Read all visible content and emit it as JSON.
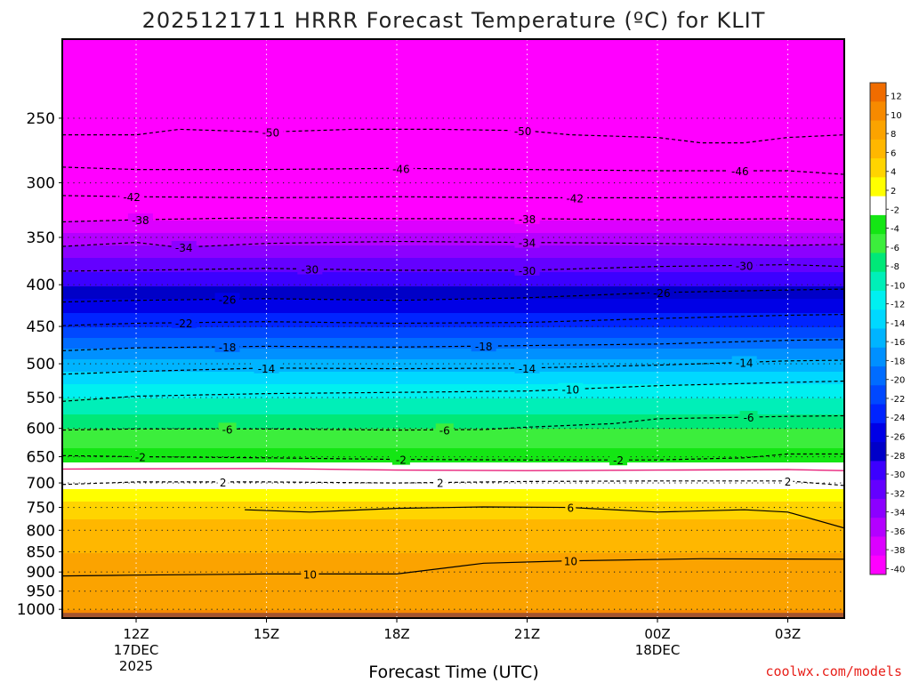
{
  "chart_data": {
    "type": "contour",
    "title": "2025121711 HRRR Forecast Temperature (ºC) for KLIT",
    "xlabel": "Forecast Time (UTC)",
    "ylabel": "",
    "credit": "coolwx.com/models",
    "x_range_hours": [
      -1.7,
      16.3
    ],
    "ylim": [
      1025,
      200
    ],
    "x_ticks": [
      {
        "hour": 0,
        "line1": "12Z",
        "line2": "17DEC",
        "line3": "2025"
      },
      {
        "hour": 3,
        "line1": "15Z",
        "line2": "",
        "line3": ""
      },
      {
        "hour": 6,
        "line1": "18Z",
        "line2": "",
        "line3": ""
      },
      {
        "hour": 9,
        "line1": "21Z",
        "line2": "",
        "line3": ""
      },
      {
        "hour": 12,
        "line1": "00Z",
        "line2": "18DEC",
        "line3": ""
      },
      {
        "hour": 15,
        "line1": "03Z",
        "line2": "",
        "line3": ""
      }
    ],
    "y_ticks": [
      250,
      300,
      350,
      400,
      450,
      500,
      550,
      600,
      650,
      700,
      750,
      800,
      850,
      900,
      950,
      1000
    ],
    "colorbar": {
      "levels": [
        "12",
        "10",
        "8",
        "6",
        "4",
        "2",
        "-2",
        "-4",
        "-6",
        "-8",
        "-10",
        "-12",
        "-14",
        "-16",
        "-18",
        "-20",
        "-22",
        "-24",
        "-26",
        "-28",
        "-30",
        "-32",
        "-34",
        "-36",
        "-38",
        "-40"
      ],
      "colors": [
        "#f06c00",
        "#f78a00",
        "#fba300",
        "#ffb700",
        "#ffd400",
        "#ffff00",
        "#ffffff",
        "#14e614",
        "#3cee3c",
        "#00e878",
        "#00efb8",
        "#00f0f0",
        "#00d8ff",
        "#00b4ff",
        "#0090ff",
        "#006cff",
        "#0048ff",
        "#0024ff",
        "#0000e6",
        "#0000c8",
        "#3c00ff",
        "#6400ff",
        "#8c00ff",
        "#b400ff",
        "#dc00ff",
        "#ff00ff"
      ]
    },
    "temperature_profile": [
      {
        "p": 1000,
        "t": 10
      },
      {
        "p": 950,
        "t": 9
      },
      {
        "p": 900,
        "t": 9
      },
      {
        "p": 850,
        "t": 8
      },
      {
        "p": 800,
        "t": 7
      },
      {
        "p": 750,
        "t": 5
      },
      {
        "p": 700,
        "t": 1
      },
      {
        "p": 680,
        "t": 0
      },
      {
        "p": 650,
        "t": -3
      },
      {
        "p": 600,
        "t": -6
      },
      {
        "p": 550,
        "t": -10
      },
      {
        "p": 500,
        "t": -15
      },
      {
        "p": 450,
        "t": -22
      },
      {
        "p": 400,
        "t": -28
      },
      {
        "p": 350,
        "t": -35
      },
      {
        "p": 300,
        "t": -44
      },
      {
        "p": 250,
        "t": -50
      }
    ],
    "contours": [
      {
        "label": "-50",
        "points": [
          [
            -1.7,
            262
          ],
          [
            0,
            262
          ],
          [
            1,
            258
          ],
          [
            3,
            260
          ],
          [
            5,
            258
          ],
          [
            7,
            258
          ],
          [
            9,
            259
          ],
          [
            10,
            262
          ],
          [
            12,
            264
          ],
          [
            13,
            268
          ],
          [
            14,
            268
          ],
          [
            15,
            264
          ],
          [
            16.3,
            262
          ]
        ],
        "label_hours": [
          3.1,
          8.9
        ]
      },
      {
        "label": "-46",
        "points": [
          [
            -1.7,
            287
          ],
          [
            0,
            289
          ],
          [
            3,
            289
          ],
          [
            6,
            288
          ],
          [
            9,
            289
          ],
          [
            12,
            290
          ],
          [
            15,
            290
          ],
          [
            16.3,
            293
          ]
        ],
        "label_hours": [
          6.1,
          13.9
        ]
      },
      {
        "label": "-42",
        "points": [
          [
            -1.7,
            311
          ],
          [
            0,
            312
          ],
          [
            3,
            313
          ],
          [
            6,
            312
          ],
          [
            9,
            313
          ],
          [
            12,
            313
          ],
          [
            15,
            312
          ],
          [
            16.3,
            313
          ]
        ],
        "label_hours": [
          -0.1,
          10.1
        ]
      },
      {
        "label": "-38",
        "points": [
          [
            -1.7,
            335
          ],
          [
            0,
            333
          ],
          [
            3,
            331
          ],
          [
            6,
            332
          ],
          [
            9,
            332
          ],
          [
            12,
            333
          ],
          [
            15,
            332
          ],
          [
            16.3,
            333
          ]
        ],
        "label_hours": [
          0.1,
          9.0
        ]
      },
      {
        "label": "-34",
        "points": [
          [
            -1.7,
            359
          ],
          [
            0,
            355
          ],
          [
            1,
            360
          ],
          [
            3,
            356
          ],
          [
            6,
            354
          ],
          [
            9,
            355
          ],
          [
            12,
            356
          ],
          [
            15,
            358
          ],
          [
            16.3,
            357
          ]
        ],
        "label_hours": [
          1.1,
          9.0
        ]
      },
      {
        "label": "-30",
        "points": [
          [
            -1.7,
            385
          ],
          [
            0,
            384
          ],
          [
            3,
            382
          ],
          [
            6,
            384
          ],
          [
            9,
            384
          ],
          [
            12,
            380
          ],
          [
            15,
            378
          ],
          [
            16.3,
            380
          ]
        ],
        "label_hours": [
          4.0,
          9.0,
          14.0
        ]
      },
      {
        "label": "-26",
        "points": [
          [
            -1.7,
            420
          ],
          [
            0,
            418
          ],
          [
            3,
            416
          ],
          [
            6,
            418
          ],
          [
            9,
            415
          ],
          [
            12,
            409
          ],
          [
            15,
            406
          ],
          [
            16.3,
            405
          ]
        ],
        "label_hours": [
          2.1,
          12.1
        ]
      },
      {
        "label": "-22",
        "points": [
          [
            -1.7,
            449
          ],
          [
            0,
            446
          ],
          [
            3,
            444
          ],
          [
            6,
            446
          ],
          [
            9,
            445
          ],
          [
            12,
            440
          ],
          [
            15,
            436
          ],
          [
            16.3,
            435
          ]
        ],
        "label_hours": [
          1.1
        ]
      },
      {
        "label": "-18",
        "points": [
          [
            -1.7,
            482
          ],
          [
            0,
            478
          ],
          [
            3,
            476
          ],
          [
            6,
            477
          ],
          [
            9,
            475
          ],
          [
            12,
            473
          ],
          [
            15,
            468
          ],
          [
            16.3,
            467
          ]
        ],
        "label_hours": [
          2.1,
          8.0
        ]
      },
      {
        "label": "-14",
        "points": [
          [
            -1.7,
            515
          ],
          [
            0,
            511
          ],
          [
            3,
            506
          ],
          [
            6,
            507
          ],
          [
            9,
            506
          ],
          [
            12,
            502
          ],
          [
            15,
            496
          ],
          [
            16.3,
            495
          ]
        ],
        "label_hours": [
          3.0,
          9.0,
          14.0
        ]
      },
      {
        "label": "-10",
        "points": [
          [
            -1.7,
            556
          ],
          [
            0,
            548
          ],
          [
            3,
            544
          ],
          [
            6,
            542
          ],
          [
            9,
            540
          ],
          [
            12,
            532
          ],
          [
            15,
            527
          ],
          [
            16.3,
            525
          ]
        ],
        "label_hours": [
          10.0
        ]
      },
      {
        "label": "-6",
        "points": [
          [
            -1.7,
            603
          ],
          [
            0,
            601
          ],
          [
            3,
            601
          ],
          [
            6,
            603
          ],
          [
            8,
            602
          ],
          [
            9,
            598
          ],
          [
            11,
            592
          ],
          [
            12,
            584
          ],
          [
            15,
            580
          ],
          [
            16.3,
            579
          ]
        ],
        "label_hours": [
          2.1,
          7.1,
          14.1
        ]
      },
      {
        "label": "-2",
        "points": [
          [
            -1.7,
            648
          ],
          [
            0,
            650
          ],
          [
            3,
            652
          ],
          [
            6,
            655
          ],
          [
            9,
            656
          ],
          [
            12,
            656
          ],
          [
            14,
            652
          ],
          [
            15,
            645
          ],
          [
            16.3,
            645
          ]
        ],
        "label_hours": [
          0.1,
          6.1,
          11.1
        ]
      },
      {
        "label": "2",
        "points": [
          [
            -1.7,
            703
          ],
          [
            0,
            698
          ],
          [
            3,
            698
          ],
          [
            6,
            700
          ],
          [
            9,
            697
          ],
          [
            12,
            696
          ],
          [
            15,
            696
          ],
          [
            16.3,
            705
          ]
        ],
        "label_hours": [
          2.0,
          7.0,
          15.0
        ]
      }
    ],
    "solid_contours": [
      {
        "label": "6",
        "points": [
          [
            2.5,
            755
          ],
          [
            4,
            760
          ],
          [
            6,
            752
          ],
          [
            8,
            749
          ],
          [
            10,
            750
          ],
          [
            12,
            760
          ],
          [
            14,
            755
          ],
          [
            15,
            760
          ],
          [
            16.3,
            795
          ]
        ],
        "label_hours": [
          10.0
        ]
      },
      {
        "label": "10",
        "points": [
          [
            -1.7,
            910
          ],
          [
            0,
            908
          ],
          [
            3,
            905
          ],
          [
            6,
            905
          ],
          [
            8,
            878
          ],
          [
            10,
            872
          ],
          [
            13,
            867
          ],
          [
            16.3,
            868
          ]
        ],
        "label_hours": [
          4.0,
          10.0
        ]
      }
    ]
  }
}
